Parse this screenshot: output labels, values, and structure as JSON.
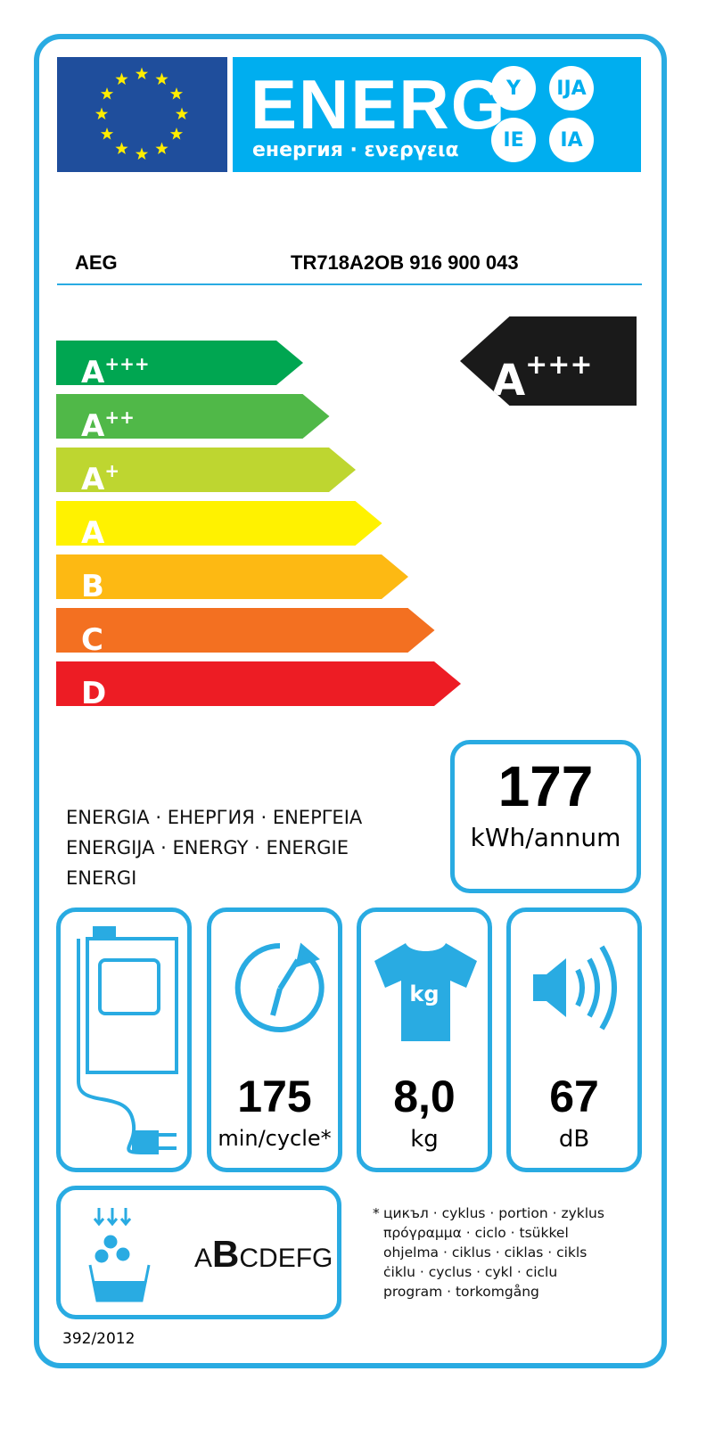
{
  "header": {
    "title": "ENERG",
    "subtitle": "енергия · ενεργεια",
    "suffixes": [
      "Y",
      "IJA",
      "IE",
      "IA"
    ]
  },
  "supplier": "AEG",
  "model": "TR718A2OB  916 900 043",
  "classes": [
    {
      "label": "A",
      "sup": "+++",
      "color": "#00a651"
    },
    {
      "label": "A",
      "sup": "++",
      "color": "#50b848"
    },
    {
      "label": "A",
      "sup": "+",
      "color": "#bed630"
    },
    {
      "label": "A",
      "sup": "",
      "color": "#fff200"
    },
    {
      "label": "B",
      "sup": "",
      "color": "#fdb913"
    },
    {
      "label": "C",
      "sup": "",
      "color": "#f37021"
    },
    {
      "label": "D",
      "sup": "",
      "color": "#ed1c24"
    }
  ],
  "rating": {
    "label": "A",
    "sup": "+++"
  },
  "energy": {
    "value": "177",
    "unit": "kWh/annum",
    "languages": [
      "ENERGIA · ЕНЕРГИЯ · ΕΝΕΡΓΕΙΑ",
      "ENERGIJA · ENERGY · ENERGIE",
      "ENERGI"
    ]
  },
  "cycle": {
    "value": "175",
    "unit": "min/cycle*"
  },
  "capacity": {
    "value": "8,0",
    "unit": "kg",
    "icon_label": "kg"
  },
  "noise": {
    "value": "67",
    "unit": "dB"
  },
  "condensation": {
    "class": "B",
    "scale_prefix": "A",
    "scale_active": "B",
    "scale_suffix": "CDEFG"
  },
  "footnote": [
    "*",
    "цикъл · cyklus · portion · zyklus",
    "πρόγραμμα · ciclo · tsükkel",
    "ohjelma · ciklus · ciklas · cikls",
    "ċiklu · cyclus · cykl · ciclu",
    "program · torkomgång"
  ],
  "regulation": "392/2012",
  "colors": {
    "frame": "#29abe2",
    "eu_blue": "#1f4e9c",
    "header_cyan": "#00aeef"
  }
}
